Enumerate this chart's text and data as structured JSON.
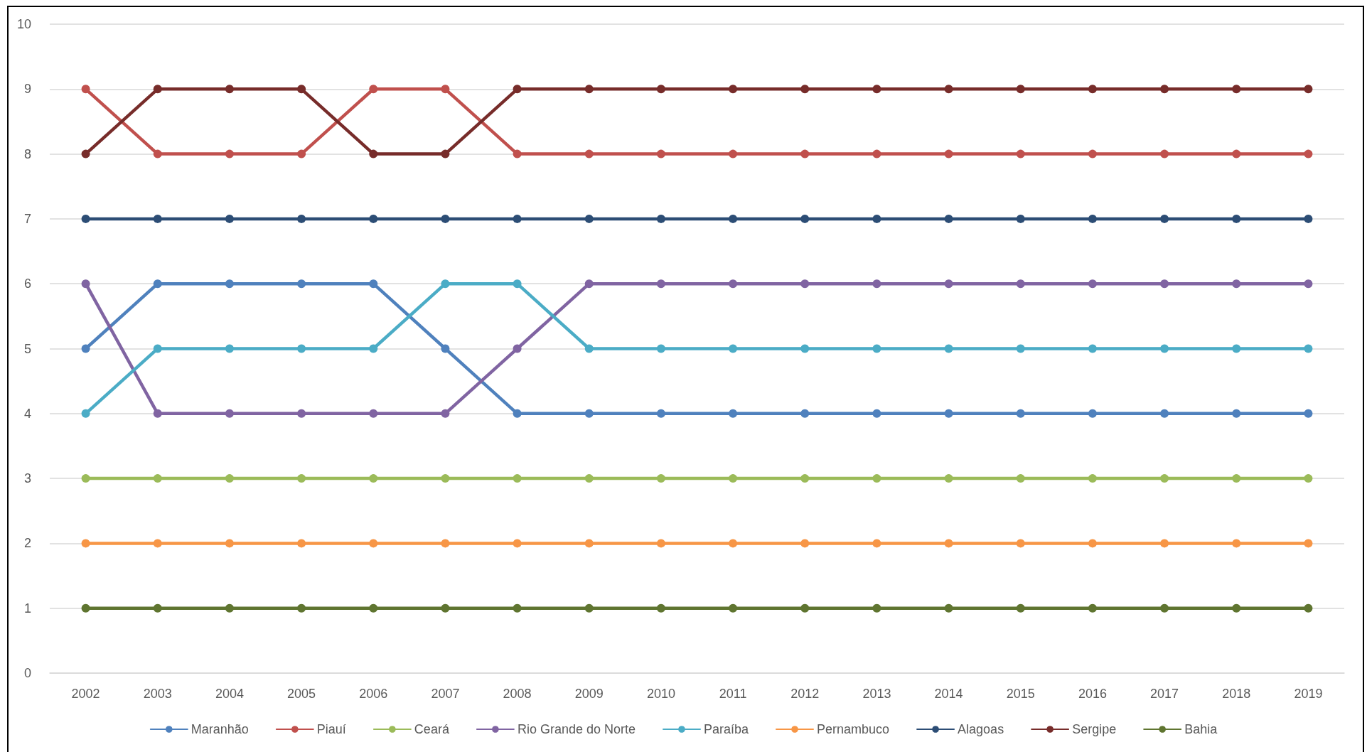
{
  "chart_data": {
    "type": "line",
    "categories": [
      "2002",
      "2003",
      "2004",
      "2005",
      "2006",
      "2007",
      "2008",
      "2009",
      "2010",
      "2011",
      "2012",
      "2013",
      "2014",
      "2015",
      "2016",
      "2017",
      "2018",
      "2019"
    ],
    "series": [
      {
        "name": "Maranhão",
        "color": "#4f81bd",
        "values": [
          5,
          6,
          6,
          6,
          6,
          5,
          4,
          4,
          4,
          4,
          4,
          4,
          4,
          4,
          4,
          4,
          4,
          4
        ]
      },
      {
        "name": "Piauí",
        "color": "#c0504d",
        "values": [
          9,
          8,
          8,
          8,
          9,
          9,
          8,
          8,
          8,
          8,
          8,
          8,
          8,
          8,
          8,
          8,
          8,
          8
        ]
      },
      {
        "name": "Ceará",
        "color": "#9bbb59",
        "values": [
          3,
          3,
          3,
          3,
          3,
          3,
          3,
          3,
          3,
          3,
          3,
          3,
          3,
          3,
          3,
          3,
          3,
          3
        ]
      },
      {
        "name": "Rio Grande do Norte",
        "color": "#8064a2",
        "values": [
          6,
          4,
          4,
          4,
          4,
          4,
          5,
          6,
          6,
          6,
          6,
          6,
          6,
          6,
          6,
          6,
          6,
          6
        ]
      },
      {
        "name": "Paraíba",
        "color": "#4bacc6",
        "values": [
          4,
          5,
          5,
          5,
          5,
          6,
          6,
          5,
          5,
          5,
          5,
          5,
          5,
          5,
          5,
          5,
          5,
          5
        ]
      },
      {
        "name": "Pernambuco",
        "color": "#f79646",
        "values": [
          2,
          2,
          2,
          2,
          2,
          2,
          2,
          2,
          2,
          2,
          2,
          2,
          2,
          2,
          2,
          2,
          2,
          2
        ]
      },
      {
        "name": "Alagoas",
        "color": "#2c4d75",
        "values": [
          7,
          7,
          7,
          7,
          7,
          7,
          7,
          7,
          7,
          7,
          7,
          7,
          7,
          7,
          7,
          7,
          7,
          7
        ]
      },
      {
        "name": "Sergipe",
        "color": "#772c2a",
        "values": [
          8,
          9,
          9,
          9,
          8,
          8,
          9,
          9,
          9,
          9,
          9,
          9,
          9,
          9,
          9,
          9,
          9,
          9
        ]
      },
      {
        "name": "Bahia",
        "color": "#5f7530",
        "values": [
          1,
          1,
          1,
          1,
          1,
          1,
          1,
          1,
          1,
          1,
          1,
          1,
          1,
          1,
          1,
          1,
          1,
          1
        ]
      }
    ],
    "ylim": [
      0,
      10
    ],
    "yticks": [
      0,
      1,
      2,
      3,
      4,
      5,
      6,
      7,
      8,
      9,
      10
    ],
    "grid": "y",
    "legend": "bottom",
    "marker": "circle",
    "line_style": "solid"
  }
}
